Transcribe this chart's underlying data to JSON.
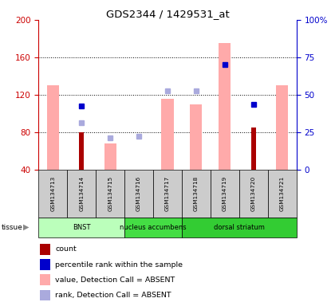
{
  "title": "GDS2344 / 1429531_at",
  "samples": [
    "GSM134713",
    "GSM134714",
    "GSM134715",
    "GSM134716",
    "GSM134717",
    "GSM134718",
    "GSM134719",
    "GSM134720",
    "GSM134721"
  ],
  "tissue_data": [
    {
      "label": "BNST",
      "start": 0,
      "end": 3,
      "color": "#bbffbb"
    },
    {
      "label": "nucleus accumbens",
      "start": 3,
      "end": 5,
      "color": "#44dd44"
    },
    {
      "label": "dorsal striatum",
      "start": 5,
      "end": 9,
      "color": "#33cc33"
    }
  ],
  "pink_bars": [
    130,
    null,
    68,
    40,
    116,
    110,
    175,
    null,
    130
  ],
  "dark_red_bars": [
    null,
    80,
    null,
    40,
    null,
    null,
    null,
    85,
    null
  ],
  "blue_squares": [
    null,
    108,
    null,
    null,
    null,
    null,
    152,
    110,
    null
  ],
  "lavender_squares": [
    null,
    90,
    74,
    76,
    124,
    124,
    null,
    null,
    null
  ],
  "left_ylim": [
    40,
    200
  ],
  "right_ylim": [
    0,
    100
  ],
  "left_yticks": [
    40,
    80,
    120,
    160,
    200
  ],
  "right_yticks": [
    0,
    25,
    50,
    75,
    100
  ],
  "right_yticklabels": [
    "0",
    "25",
    "50",
    "75",
    "100%"
  ],
  "left_color": "#cc0000",
  "right_color": "#0000cc",
  "pink_color": "#ffaaaa",
  "dark_red_color": "#aa0000",
  "blue_color": "#0000cc",
  "lavender_color": "#aaaadd",
  "background_color": "#ffffff",
  "sample_label_bgcolor": "#cccccc",
  "gridline_ticks": [
    80,
    120,
    160
  ]
}
